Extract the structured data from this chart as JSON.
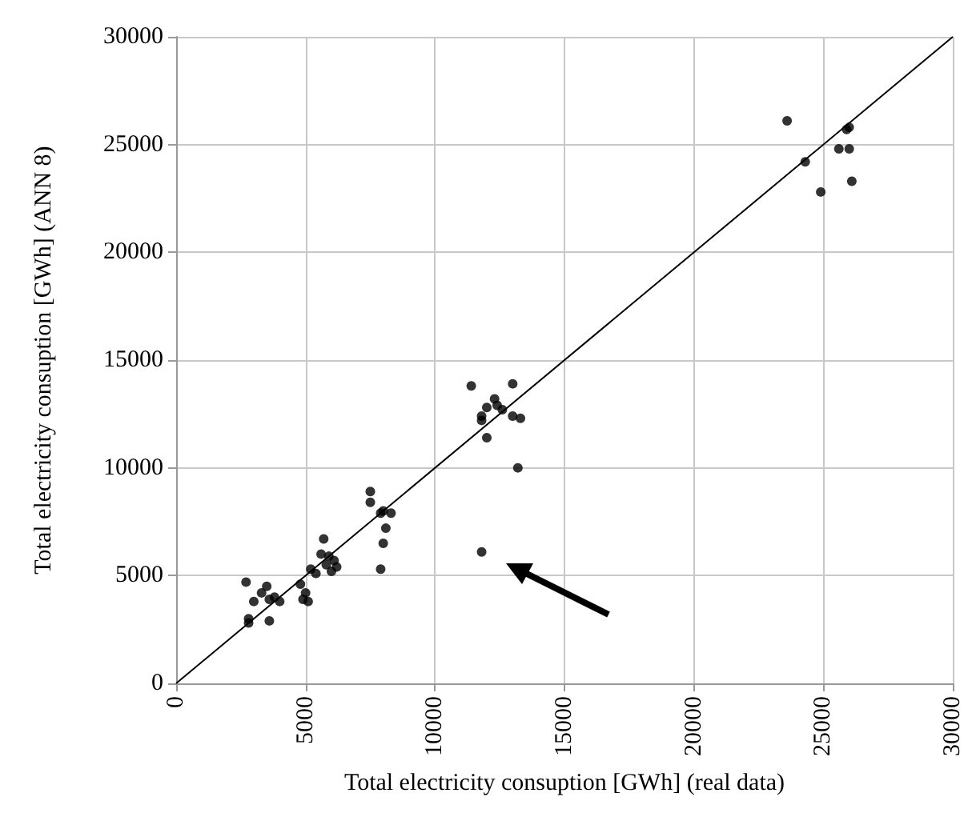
{
  "chart_data": {
    "type": "scatter",
    "xlabel": "Total electricity consuption [GWh] (real data)",
    "ylabel": "Total electricity consuption [GWh] (ANN 8)",
    "xlim": [
      0,
      30000
    ],
    "ylim": [
      0,
      30000
    ],
    "xticks": [
      0,
      5000,
      10000,
      15000,
      20000,
      25000,
      30000
    ],
    "yticks": [
      0,
      5000,
      10000,
      15000,
      20000,
      25000,
      30000
    ],
    "grid": true,
    "marker": "circle",
    "series": [
      {
        "color": "#000000",
        "x": [
          2700,
          2800,
          2800,
          3000,
          3300,
          3500,
          3600,
          3600,
          3800,
          4000,
          4800,
          4900,
          5000,
          5100,
          5200,
          5400,
          5600,
          5700,
          5800,
          5900,
          6000,
          6100,
          6200,
          7500,
          7500,
          7900,
          8000,
          8100,
          8300,
          8000,
          7900,
          11400,
          11800,
          11800,
          12000,
          12000,
          12300,
          12400,
          12600,
          13000,
          13000,
          13300,
          13200,
          11800,
          23600,
          24300,
          24900,
          25600,
          25900,
          26000,
          26000,
          26100
        ],
        "values": [
          4700,
          3000,
          2800,
          3800,
          4200,
          4500,
          3900,
          2900,
          4000,
          3800,
          4600,
          3900,
          4200,
          3800,
          5300,
          5100,
          6000,
          6700,
          5500,
          5900,
          5200,
          5700,
          5400,
          8900,
          8400,
          7900,
          8000,
          7200,
          7900,
          6500,
          5300,
          13800,
          12400,
          12200,
          11400,
          12800,
          13200,
          12900,
          12700,
          13900,
          12400,
          12300,
          10000,
          6100,
          26100,
          24200,
          22800,
          24800,
          25700,
          25800,
          24800,
          23300
        ]
      },
      {
        "type": "line",
        "color": "#000000",
        "marker": "none",
        "x": [
          0,
          30000
        ],
        "values": [
          0,
          30000
        ]
      }
    ]
  }
}
